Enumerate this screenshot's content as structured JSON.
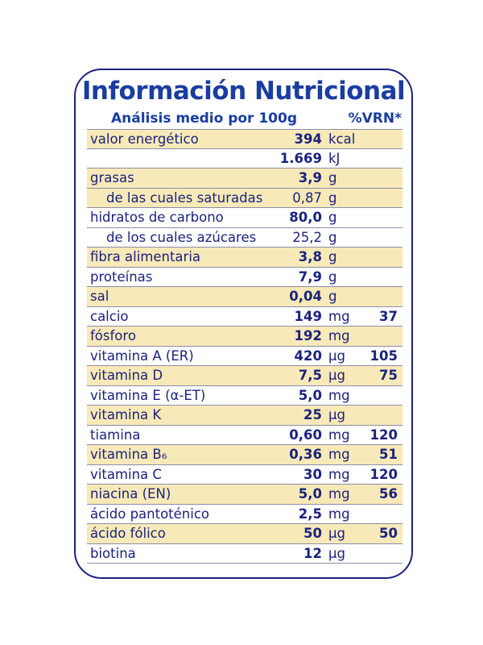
{
  "card": {
    "title": "Información Nutricional",
    "subtitle": "Análisis medio por 100g",
    "vrn_header": "%VRN*"
  },
  "rows": [
    {
      "name": "valor energético",
      "value": "394",
      "unit": "kcal",
      "vrn": "",
      "shaded": true,
      "sub": false
    },
    {
      "name": "",
      "value": "1.669",
      "unit": "kJ",
      "vrn": "",
      "shaded": false,
      "sub": false
    },
    {
      "name": "grasas",
      "value": "3,9",
      "unit": "g",
      "vrn": "",
      "shaded": true,
      "sub": false
    },
    {
      "name": "de las cuales saturadas",
      "value": "0,87",
      "unit": "g",
      "vrn": "",
      "shaded": true,
      "sub": true
    },
    {
      "name": "hidratos de carbono",
      "value": "80,0",
      "unit": "g",
      "vrn": "",
      "shaded": false,
      "sub": false
    },
    {
      "name": "de los cuales azúcares",
      "value": "25,2",
      "unit": "g",
      "vrn": "",
      "shaded": false,
      "sub": true
    },
    {
      "name": "fibra alimentaria",
      "value": "3,8",
      "unit": "g",
      "vrn": "",
      "shaded": true,
      "sub": false
    },
    {
      "name": "proteínas",
      "value": "7,9",
      "unit": "g",
      "vrn": "",
      "shaded": false,
      "sub": false
    },
    {
      "name": "sal",
      "value": "0,04",
      "unit": "g",
      "vrn": "",
      "shaded": true,
      "sub": false
    },
    {
      "name": "calcio",
      "value": "149",
      "unit": "mg",
      "vrn": "37",
      "shaded": false,
      "sub": false
    },
    {
      "name": "fósforo",
      "value": "192",
      "unit": "mg",
      "vrn": "",
      "shaded": true,
      "sub": false
    },
    {
      "name": "vitamina A (ER)",
      "value": "420",
      "unit": "µg",
      "vrn": "105",
      "shaded": false,
      "sub": false
    },
    {
      "name": "vitamina D",
      "value": "7,5",
      "unit": "µg",
      "vrn": "75",
      "shaded": true,
      "sub": false
    },
    {
      "name": "vitamina E (α-ET)",
      "value": "5,0",
      "unit": "mg",
      "vrn": "",
      "shaded": false,
      "sub": false
    },
    {
      "name": "vitamina K",
      "value": "25",
      "unit": "µg",
      "vrn": "",
      "shaded": true,
      "sub": false
    },
    {
      "name": "tiamina",
      "value": "0,60",
      "unit": "mg",
      "vrn": "120",
      "shaded": false,
      "sub": false
    },
    {
      "name": "vitamina B₆",
      "value": "0,36",
      "unit": "mg",
      "vrn": "51",
      "shaded": true,
      "sub": false
    },
    {
      "name": "vitamina C",
      "value": "30",
      "unit": "mg",
      "vrn": "120",
      "shaded": false,
      "sub": false
    },
    {
      "name": "niacina (EN)",
      "value": "5,0",
      "unit": "mg",
      "vrn": "56",
      "shaded": true,
      "sub": false
    },
    {
      "name": "ácido pantoténico",
      "value": "2,5",
      "unit": "mg",
      "vrn": "",
      "shaded": false,
      "sub": false
    },
    {
      "name": "ácido fólico",
      "value": "50",
      "unit": "µg",
      "vrn": "50",
      "shaded": true,
      "sub": false
    },
    {
      "name": "biotina",
      "value": "12",
      "unit": "µg",
      "vrn": "",
      "shaded": false,
      "sub": false
    }
  ],
  "colors": {
    "text": "#1a237e",
    "title": "#1a3da0",
    "shade": "#f8e9b8",
    "border": "#1a237e"
  }
}
